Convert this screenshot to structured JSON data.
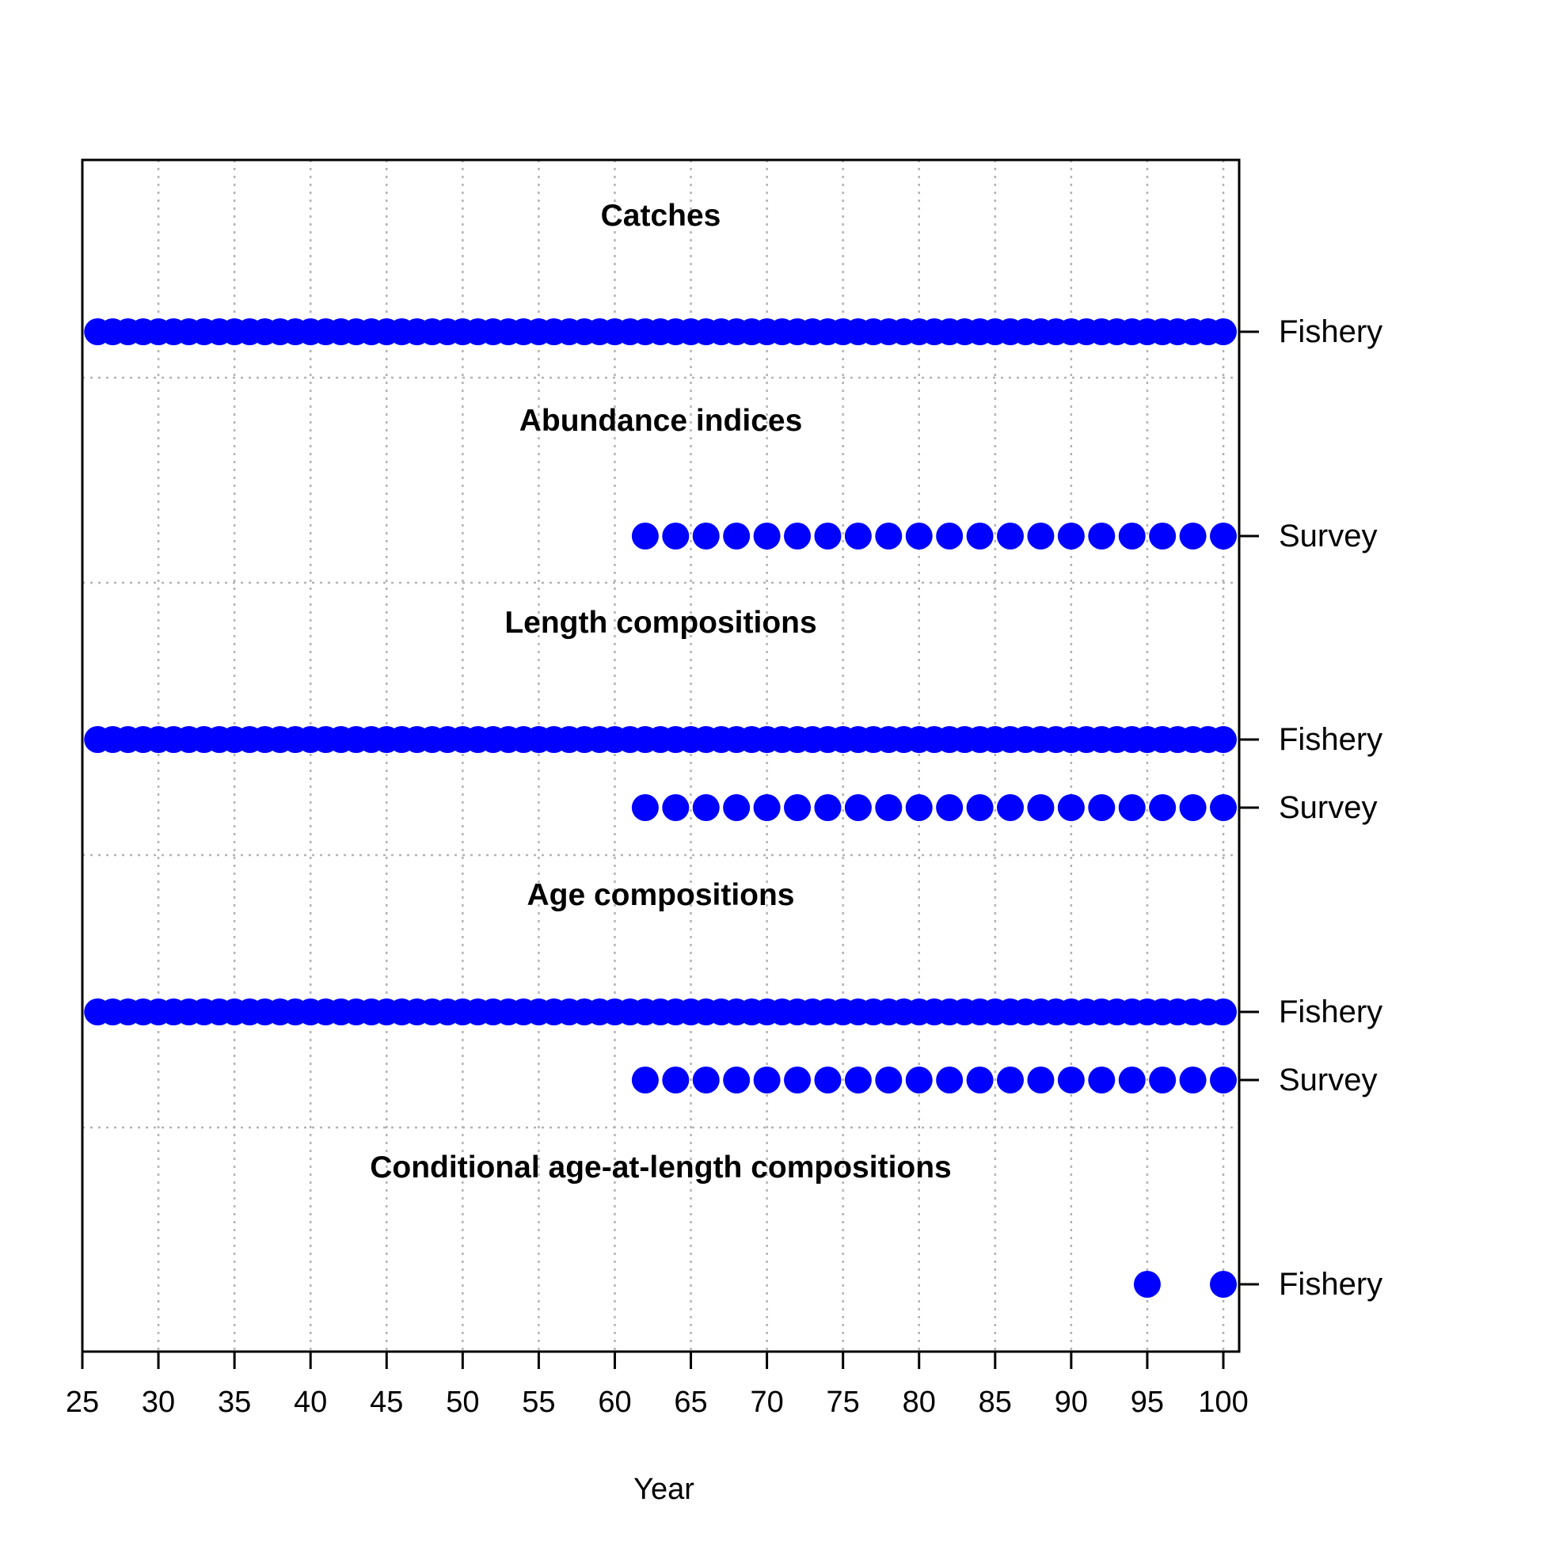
{
  "chart_data": {
    "type": "scatter",
    "xlabel": "Year",
    "xlim": [
      25,
      101
    ],
    "x_ticks": [
      25,
      30,
      35,
      40,
      45,
      50,
      55,
      60,
      65,
      70,
      75,
      80,
      85,
      90,
      95,
      100
    ],
    "grid": true,
    "point_color": "#0000FF",
    "sections": [
      {
        "title": "Catches",
        "rows": [
          {
            "label": "Fishery",
            "years": [
              26,
              27,
              28,
              29,
              30,
              31,
              32,
              33,
              34,
              35,
              36,
              37,
              38,
              39,
              40,
              41,
              42,
              43,
              44,
              45,
              46,
              47,
              48,
              49,
              50,
              51,
              52,
              53,
              54,
              55,
              56,
              57,
              58,
              59,
              60,
              61,
              62,
              63,
              64,
              65,
              66,
              67,
              68,
              69,
              70,
              71,
              72,
              73,
              74,
              75,
              76,
              77,
              78,
              79,
              80,
              81,
              82,
              83,
              84,
              85,
              86,
              87,
              88,
              89,
              90,
              91,
              92,
              93,
              94,
              95,
              96,
              97,
              98,
              99,
              100
            ]
          }
        ]
      },
      {
        "title": "Abundance indices",
        "rows": [
          {
            "label": "Survey",
            "years": [
              62,
              64,
              66,
              68,
              70,
              72,
              74,
              76,
              78,
              80,
              82,
              84,
              86,
              88,
              90,
              92,
              94,
              96,
              98,
              100
            ]
          }
        ]
      },
      {
        "title": "Length compositions",
        "rows": [
          {
            "label": "Fishery",
            "years": [
              26,
              27,
              28,
              29,
              30,
              31,
              32,
              33,
              34,
              35,
              36,
              37,
              38,
              39,
              40,
              41,
              42,
              43,
              44,
              45,
              46,
              47,
              48,
              49,
              50,
              51,
              52,
              53,
              54,
              55,
              56,
              57,
              58,
              59,
              60,
              61,
              62,
              63,
              64,
              65,
              66,
              67,
              68,
              69,
              70,
              71,
              72,
              73,
              74,
              75,
              76,
              77,
              78,
              79,
              80,
              81,
              82,
              83,
              84,
              85,
              86,
              87,
              88,
              89,
              90,
              91,
              92,
              93,
              94,
              95,
              96,
              97,
              98,
              99,
              100
            ]
          },
          {
            "label": "Survey",
            "years": [
              62,
              64,
              66,
              68,
              70,
              72,
              74,
              76,
              78,
              80,
              82,
              84,
              86,
              88,
              90,
              92,
              94,
              96,
              98,
              100
            ]
          }
        ]
      },
      {
        "title": "Age compositions",
        "rows": [
          {
            "label": "Fishery",
            "years": [
              26,
              27,
              28,
              29,
              30,
              31,
              32,
              33,
              34,
              35,
              36,
              37,
              38,
              39,
              40,
              41,
              42,
              43,
              44,
              45,
              46,
              47,
              48,
              49,
              50,
              51,
              52,
              53,
              54,
              55,
              56,
              57,
              58,
              59,
              60,
              61,
              62,
              63,
              64,
              65,
              66,
              67,
              68,
              69,
              70,
              71,
              72,
              73,
              74,
              75,
              76,
              77,
              78,
              79,
              80,
              81,
              82,
              83,
              84,
              85,
              86,
              87,
              88,
              89,
              90,
              91,
              92,
              93,
              94,
              95,
              96,
              97,
              98,
              99,
              100
            ]
          },
          {
            "label": "Survey",
            "years": [
              62,
              64,
              66,
              68,
              70,
              72,
              74,
              76,
              78,
              80,
              82,
              84,
              86,
              88,
              90,
              92,
              94,
              96,
              98,
              100
            ]
          }
        ]
      },
      {
        "title": "Conditional age-at-length compositions",
        "rows": [
          {
            "label": "Fishery",
            "years": [
              95,
              100
            ]
          }
        ]
      }
    ]
  }
}
